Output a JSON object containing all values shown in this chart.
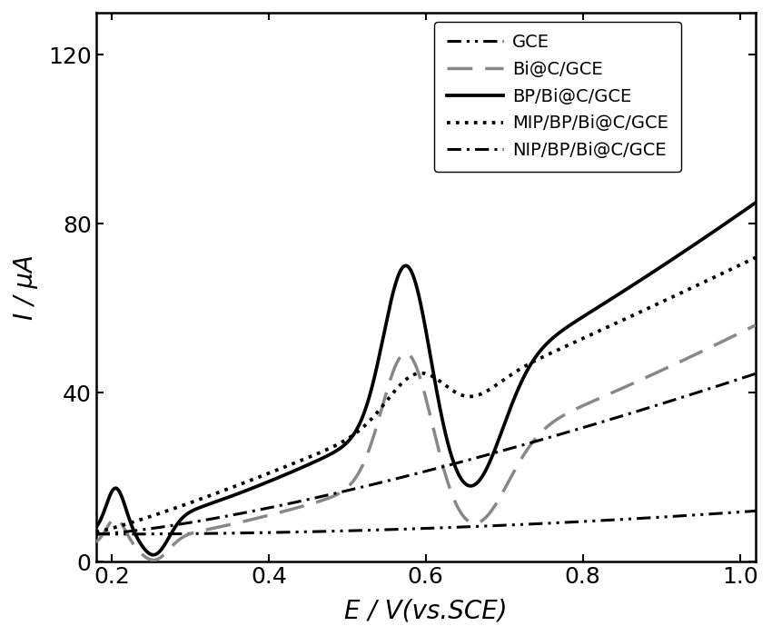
{
  "title": "",
  "xlabel": "E / V(vs.SCE)",
  "ylabel": "I / μA",
  "xlim": [
    0.18,
    1.02
  ],
  "ylim": [
    0,
    130
  ],
  "xticks": [
    0.2,
    0.4,
    0.6,
    0.8,
    1.0
  ],
  "yticks": [
    0,
    40,
    80,
    120
  ],
  "background_color": "#ffffff",
  "figsize": [
    8.5,
    7.0
  ],
  "dpi": 100
}
